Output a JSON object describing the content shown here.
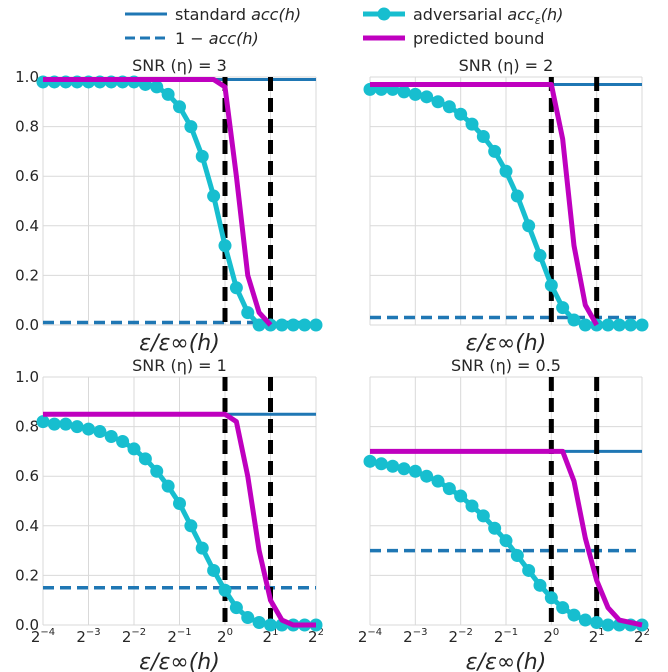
{
  "legend": {
    "items": [
      {
        "label_pre": "standard ",
        "label_math": "acc(h)",
        "style": "solid",
        "color": "#1f77b4"
      },
      {
        "label_pre": "1 − ",
        "label_math": "acc(h)",
        "style": "dashed",
        "color": "#1f77b4"
      },
      {
        "label_pre": "adversarial ",
        "label_math": "acc",
        "label_sub": "ε",
        "label_post": "(h)",
        "style": "marker",
        "color": "#17becf"
      },
      {
        "label_pre": "predicted bound",
        "label_math": "",
        "style": "solid-thick",
        "color": "#bf00bf"
      }
    ]
  },
  "colors": {
    "standard": "#1f77b4",
    "adversarial": "#17becf",
    "bound": "#bf00bf",
    "vline": "#000000",
    "grid": "#d9d9d9"
  },
  "xlabel": "ε/ε∞(h)",
  "x_ticks": [
    {
      "base": "2",
      "exp": "−4",
      "value": -4
    },
    {
      "base": "2",
      "exp": "−3",
      "value": -3
    },
    {
      "base": "2",
      "exp": "−2",
      "value": -2
    },
    {
      "base": "2",
      "exp": "−1",
      "value": -1
    },
    {
      "base": "2",
      "exp": "0",
      "value": 0
    },
    {
      "base": "2",
      "exp": "1",
      "value": 1
    },
    {
      "base": "2",
      "exp": "2",
      "value": 2
    }
  ],
  "y_ticks": [
    "0.0",
    "0.2",
    "0.4",
    "0.6",
    "0.8",
    "1.0"
  ],
  "chart_data": [
    {
      "type": "line",
      "title": "SNR (η) = 3",
      "xscale": "log2",
      "xlim": [
        -4,
        2
      ],
      "ylim": [
        0,
        1
      ],
      "grid": true,
      "standard_acc": 0.99,
      "one_minus_acc": 0.01,
      "vlines": [
        0,
        1
      ],
      "adversarial": {
        "x": [
          -4,
          -3.75,
          -3.5,
          -3.25,
          -3,
          -2.75,
          -2.5,
          -2.25,
          -2,
          -1.75,
          -1.5,
          -1.25,
          -1,
          -0.75,
          -0.5,
          -0.25,
          0,
          0.25,
          0.5,
          0.75,
          1,
          1.25,
          1.5,
          1.75,
          2
        ],
        "y": [
          0.98,
          0.98,
          0.98,
          0.98,
          0.98,
          0.98,
          0.98,
          0.98,
          0.98,
          0.97,
          0.96,
          0.93,
          0.88,
          0.8,
          0.68,
          0.52,
          0.32,
          0.15,
          0.05,
          0.0,
          0.0,
          0.0,
          0.0,
          0.0,
          0.0
        ]
      },
      "bound": {
        "x": [
          -4,
          -0.25,
          0,
          0.25,
          0.5,
          0.75,
          1
        ],
        "y": [
          0.99,
          0.99,
          0.96,
          0.6,
          0.2,
          0.05,
          0.0
        ]
      }
    },
    {
      "type": "line",
      "title": "SNR (η) = 2",
      "xscale": "log2",
      "xlim": [
        -4,
        2
      ],
      "ylim": [
        0,
        1
      ],
      "grid": true,
      "standard_acc": 0.97,
      "one_minus_acc": 0.03,
      "vlines": [
        0,
        1
      ],
      "adversarial": {
        "x": [
          -4,
          -3.75,
          -3.5,
          -3.25,
          -3,
          -2.75,
          -2.5,
          -2.25,
          -2,
          -1.75,
          -1.5,
          -1.25,
          -1,
          -0.75,
          -0.5,
          -0.25,
          0,
          0.25,
          0.5,
          0.75,
          1,
          1.25,
          1.5,
          1.75,
          2
        ],
        "y": [
          0.95,
          0.95,
          0.95,
          0.94,
          0.93,
          0.92,
          0.9,
          0.88,
          0.85,
          0.81,
          0.76,
          0.7,
          0.62,
          0.52,
          0.4,
          0.28,
          0.16,
          0.07,
          0.02,
          0.0,
          0.0,
          0.0,
          0.0,
          0.0,
          0.0
        ]
      },
      "bound": {
        "x": [
          -4,
          0,
          0.25,
          0.5,
          0.75,
          1
        ],
        "y": [
          0.97,
          0.97,
          0.75,
          0.32,
          0.08,
          0.0
        ]
      }
    },
    {
      "type": "line",
      "title": "SNR (η) = 1",
      "xscale": "log2",
      "xlim": [
        -4,
        2
      ],
      "ylim": [
        0,
        1
      ],
      "grid": true,
      "standard_acc": 0.85,
      "one_minus_acc": 0.15,
      "vlines": [
        0,
        1
      ],
      "adversarial": {
        "x": [
          -4,
          -3.75,
          -3.5,
          -3.25,
          -3,
          -2.75,
          -2.5,
          -2.25,
          -2,
          -1.75,
          -1.5,
          -1.25,
          -1,
          -0.75,
          -0.5,
          -0.25,
          0,
          0.25,
          0.5,
          0.75,
          1,
          1.25,
          1.5,
          1.75,
          2
        ],
        "y": [
          0.82,
          0.81,
          0.81,
          0.8,
          0.79,
          0.78,
          0.76,
          0.74,
          0.71,
          0.67,
          0.62,
          0.56,
          0.49,
          0.4,
          0.31,
          0.22,
          0.14,
          0.07,
          0.03,
          0.01,
          0.0,
          0.0,
          0.0,
          0.0,
          0.0
        ]
      },
      "bound": {
        "x": [
          -4,
          0,
          0.25,
          0.5,
          0.75,
          1,
          1.25,
          1.5,
          2
        ],
        "y": [
          0.85,
          0.85,
          0.82,
          0.6,
          0.3,
          0.1,
          0.02,
          0.0,
          0.0
        ]
      }
    },
    {
      "type": "line",
      "title": "SNR (η) = 0.5",
      "xscale": "log2",
      "xlim": [
        -4,
        2
      ],
      "ylim": [
        0,
        1
      ],
      "grid": true,
      "standard_acc": 0.7,
      "one_minus_acc": 0.3,
      "vlines": [
        0,
        1
      ],
      "adversarial": {
        "x": [
          -4,
          -3.75,
          -3.5,
          -3.25,
          -3,
          -2.75,
          -2.5,
          -2.25,
          -2,
          -1.75,
          -1.5,
          -1.25,
          -1,
          -0.75,
          -0.5,
          -0.25,
          0,
          0.25,
          0.5,
          0.75,
          1,
          1.25,
          1.5,
          1.75,
          2
        ],
        "y": [
          0.66,
          0.65,
          0.64,
          0.63,
          0.62,
          0.6,
          0.58,
          0.55,
          0.52,
          0.48,
          0.44,
          0.39,
          0.34,
          0.28,
          0.22,
          0.16,
          0.11,
          0.07,
          0.04,
          0.02,
          0.01,
          0.0,
          0.0,
          0.0,
          0.0
        ]
      },
      "bound": {
        "x": [
          -4,
          0.25,
          0.5,
          0.75,
          1,
          1.25,
          1.5,
          2
        ],
        "y": [
          0.7,
          0.7,
          0.58,
          0.35,
          0.18,
          0.07,
          0.02,
          0.0
        ]
      }
    }
  ]
}
